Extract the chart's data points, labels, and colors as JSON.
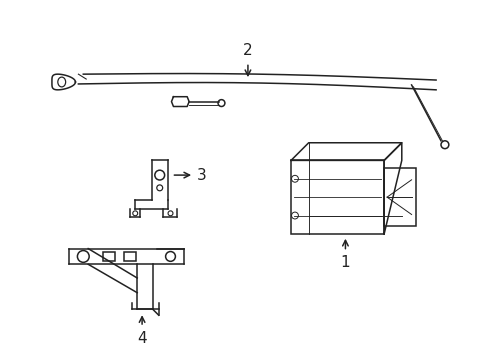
{
  "background_color": "#ffffff",
  "line_color": "#222222",
  "line_width": 1.1,
  "figsize": [
    4.89,
    3.6
  ],
  "dpi": 100
}
